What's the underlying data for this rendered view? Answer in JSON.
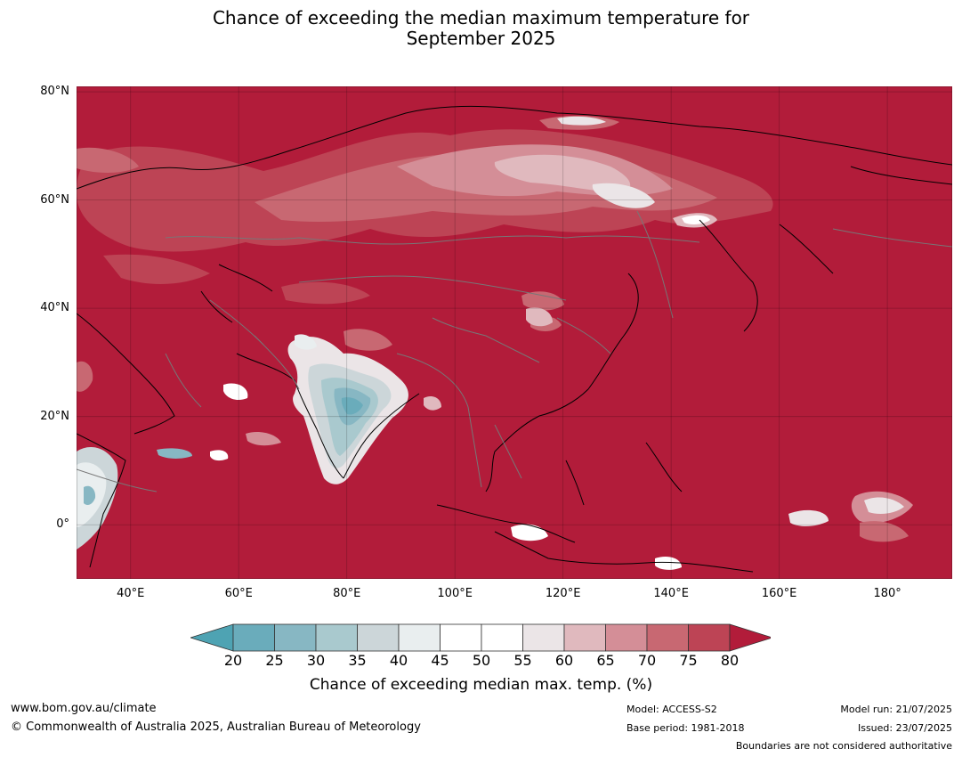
{
  "title_line1": "Chance of exceeding the median maximum temperature for",
  "title_line2": "September 2025",
  "map": {
    "lon_range": [
      30,
      192
    ],
    "lat_range": [
      -10,
      81
    ],
    "lat_ticks": [
      {
        "value": 80,
        "label": "80°N"
      },
      {
        "value": 60,
        "label": "60°N"
      },
      {
        "value": 40,
        "label": "40°N"
      },
      {
        "value": 20,
        "label": "20°N"
      },
      {
        "value": 0,
        "label": "0°"
      }
    ],
    "lon_ticks": [
      {
        "value": 40,
        "label": "40°E"
      },
      {
        "value": 60,
        "label": "60°E"
      },
      {
        "value": 80,
        "label": "80°E"
      },
      {
        "value": 100,
        "label": "100°E"
      },
      {
        "value": 120,
        "label": "120°E"
      },
      {
        "value": 140,
        "label": "140°E"
      },
      {
        "value": 160,
        "label": "160°E"
      },
      {
        "value": 180,
        "label": "180°"
      }
    ],
    "base_color": "#b21c3a",
    "border_color": "#777777",
    "coast_color": "#000000"
  },
  "colorbar": {
    "ticks": [
      "20",
      "25",
      "30",
      "35",
      "40",
      "45",
      "50",
      "55",
      "60",
      "65",
      "70",
      "75",
      "80"
    ],
    "colors": [
      "#6aacbb",
      "#87b7c3",
      "#a9c9ce",
      "#ccd6d9",
      "#e9eeef",
      "#ffffff",
      "#ffffff",
      "#ebe5e7",
      "#e0b9be",
      "#d48e97",
      "#c86872",
      "#bd4455"
    ],
    "under_color": "#4ea3b3",
    "over_color": "#b21c3a",
    "label": "Chance of exceeding median max. temp. (%)"
  },
  "footer": {
    "url": "www.bom.gov.au/climate",
    "copyright": "© Commonwealth of Australia 2025, Australian Bureau of Meteorology",
    "model": "Model: ACCESS-S2",
    "base_period": "Base period: 1981-2018",
    "model_run": "Model run: 21/07/2025",
    "issued": "Issued: 23/07/2025",
    "disclaimer": "Boundaries are not considered authoritative"
  }
}
